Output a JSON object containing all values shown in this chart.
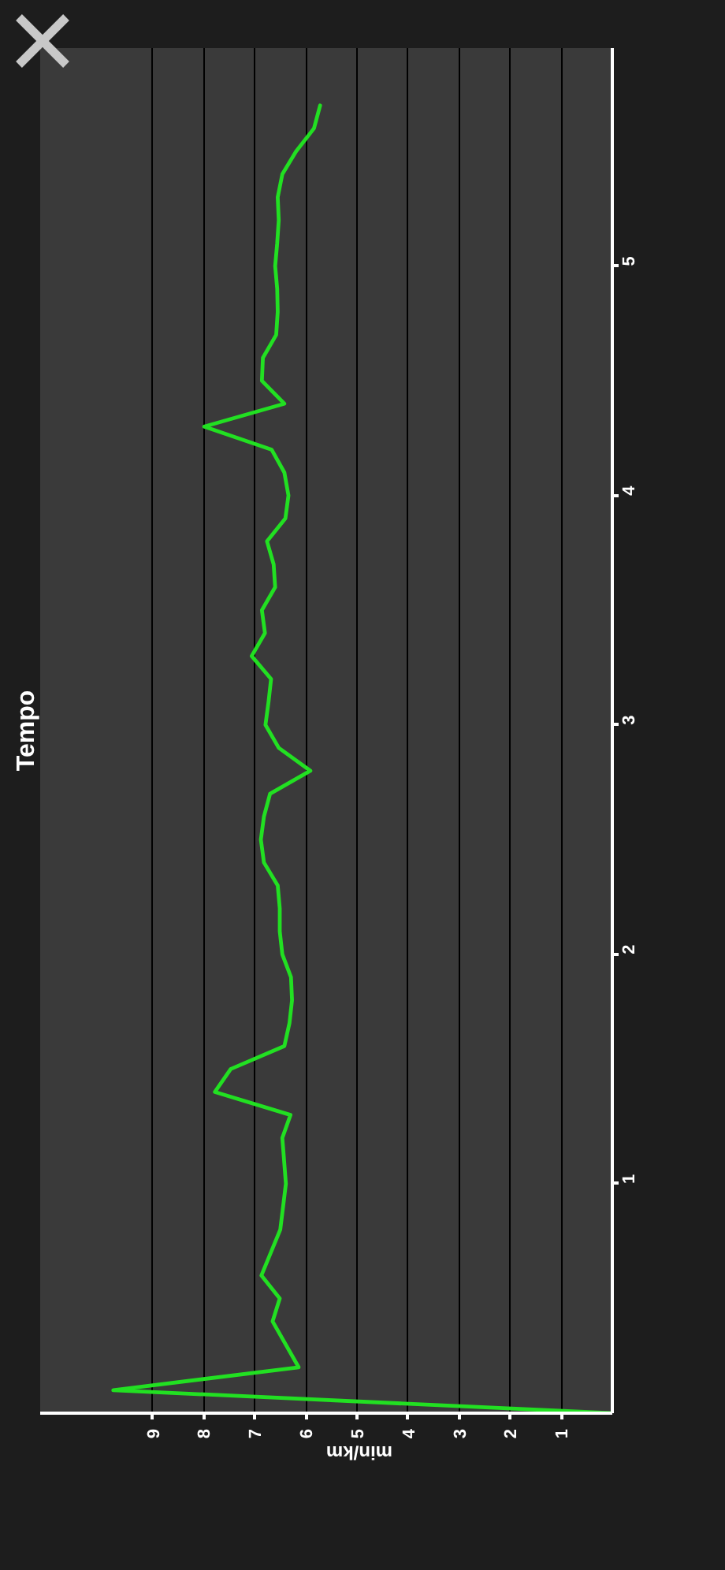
{
  "chart_data": {
    "type": "line",
    "title": "Tempo",
    "xlabel": "min/km",
    "x": [
      0,
      9.77,
      6.14,
      6.65,
      6.51,
      6.87,
      6.5,
      6.39,
      6.46,
      6.3,
      7.78,
      7.47,
      6.42,
      6.32,
      6.27,
      6.29,
      6.46,
      6.51,
      6.51,
      6.55,
      6.82,
      6.88,
      6.82,
      6.7,
      5.91,
      6.53,
      6.79,
      6.73,
      6.68,
      7.06,
      6.8,
      6.86,
      6.6,
      6.63,
      6.76,
      6.4,
      6.34,
      6.42,
      6.67,
      7.99,
      6.42,
      6.86,
      6.84,
      6.58,
      6.55,
      6.56,
      6.6,
      6.56,
      6.53,
      6.55,
      6.46,
      6.19,
      5.84,
      5.72
    ],
    "series": [
      {
        "color": "#22e022",
        "values": [
          0,
          0.1,
          0.2,
          0.4,
          0.5,
          0.6,
          0.8,
          1.0,
          1.2,
          1.3,
          1.4,
          1.5,
          1.6,
          1.7,
          1.8,
          1.9,
          2.0,
          2.1,
          2.2,
          2.3,
          2.4,
          2.5,
          2.6,
          2.7,
          2.8,
          2.9,
          3.0,
          3.1,
          3.2,
          3.3,
          3.4,
          3.5,
          3.6,
          3.7,
          3.8,
          3.9,
          4.0,
          4.1,
          4.2,
          4.3,
          4.4,
          4.5,
          4.6,
          4.7,
          4.8,
          4.9,
          5.0,
          5.1,
          5.2,
          5.3,
          5.4,
          5.5,
          5.6,
          5.7
        ]
      }
    ],
    "xlim": [
      11.2,
      0
    ],
    "ylim": [
      0,
      5.95
    ],
    "xticks": [
      1,
      2,
      3,
      4,
      5,
      6,
      7,
      8,
      9
    ],
    "yticks": [
      1,
      2,
      3,
      4,
      5
    ],
    "grid": "x"
  }
}
